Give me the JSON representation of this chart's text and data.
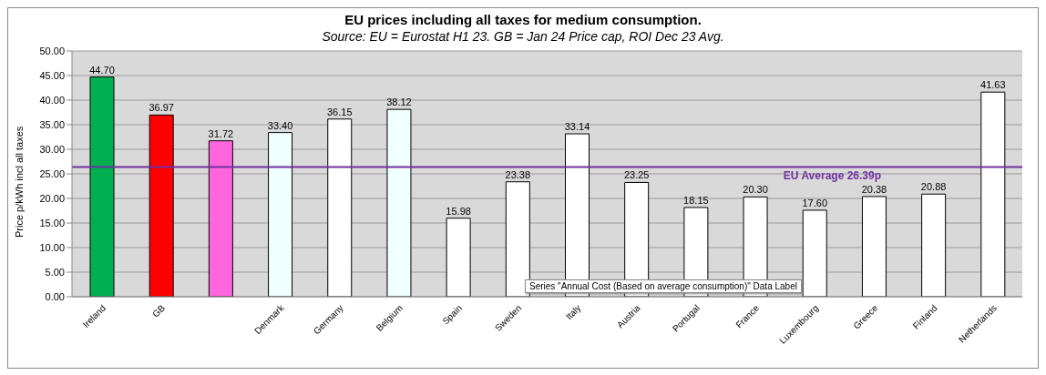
{
  "chart_data": {
    "type": "bar",
    "title": "EU prices including all taxes for medium consumption.",
    "subtitle": "Source: EU = Eurostat H1 23. GB = Jan 24 Price cap, ROI Dec 23 Avg.",
    "ylabel": "Price p/kWh incl all taxes",
    "categories": [
      "Ireland",
      "GB",
      null,
      "Denmark",
      "Germany",
      "Belgium",
      "Spain",
      "Sweden",
      "Italy",
      "Austria",
      "Portugal",
      "France",
      "Luxembourg",
      "Greece",
      "Finland",
      "Netherlands"
    ],
    "values": [
      44.7,
      36.97,
      31.72,
      33.4,
      36.15,
      38.12,
      15.98,
      23.38,
      33.14,
      23.25,
      18.15,
      20.3,
      17.6,
      20.38,
      20.88,
      41.63
    ],
    "colors": [
      "#00b050",
      "#ff0000",
      "#ff66dd",
      "#f0ffff",
      "#ffffff",
      "#f0ffff",
      "#ffffff",
      "#ffffff",
      "#ffffff",
      "#ffffff",
      "#ffffff",
      "#ffffff",
      "#ffffff",
      "#ffffff",
      "#ffffff",
      "#ffffff"
    ],
    "value_labels": [
      "44.70",
      "36.97",
      "31.72",
      "33.40",
      "36.15",
      "38.12",
      "15.98",
      "23.38",
      "33.14",
      "23.25",
      "18.15",
      "20.30",
      "17.60",
      "20.38",
      "20.88",
      "41.63"
    ],
    "ylim": [
      0,
      50
    ],
    "yticks": [
      {
        "value": 0,
        "label": "0.00"
      },
      {
        "value": 5,
        "label": "5.00"
      },
      {
        "value": 10,
        "label": "10.00"
      },
      {
        "value": 15,
        "label": "15.00"
      },
      {
        "value": 20,
        "label": "20.00"
      },
      {
        "value": 25,
        "label": "25.00"
      },
      {
        "value": 30,
        "label": "30.00"
      },
      {
        "value": 35,
        "label": "35.00"
      },
      {
        "value": 40,
        "label": "40.00"
      },
      {
        "value": 45,
        "label": "45.00"
      },
      {
        "value": 50,
        "label": "50.00"
      }
    ],
    "grid": "y",
    "ref_lines": [
      {
        "axis": "y",
        "value": 26.39,
        "label": "EU Average 26.39p",
        "color": "#7030a0"
      }
    ],
    "annotations": [
      "Series \"Annual Cost (Based on average consumption)\" Data Label"
    ],
    "legend": false
  }
}
